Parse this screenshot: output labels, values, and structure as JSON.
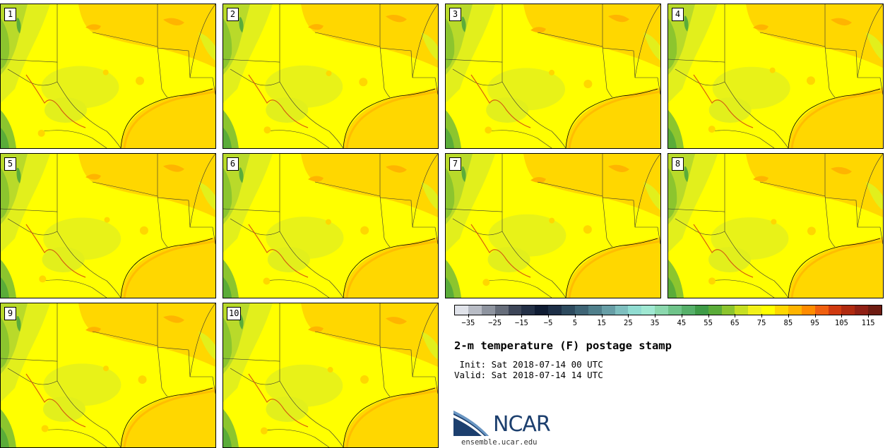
{
  "members": [
    "1",
    "2",
    "3",
    "4",
    "5",
    "6",
    "7",
    "8",
    "9",
    "10"
  ],
  "title": "2-m temperature (F) postage stamp",
  "init": " Init: Sat 2018-07-14 00 UTC",
  "valid": "Valid: Sat 2018-07-14 14 UTC",
  "colorbar": {
    "colors": [
      "#e0e3ea",
      "#b8bcc5",
      "#8e949f",
      "#666d7a",
      "#3d4658",
      "#233046",
      "#0f1c33",
      "#1d2f47",
      "#2d4a5e",
      "#3e6475",
      "#4f7f8b",
      "#679ea6",
      "#7ebfbf",
      "#90dcd1",
      "#9fe8d2",
      "#8bd8ae",
      "#6fc48a",
      "#56b06a",
      "#3e9b47",
      "#5aac39",
      "#8cc52e",
      "#c6df22",
      "#f2f11a",
      "#ffff00",
      "#ffd700",
      "#ffb400",
      "#ff8c00",
      "#f06010",
      "#d03a10",
      "#b02a10",
      "#902015",
      "#6e1c12"
    ],
    "tick_labels": [
      "−35",
      "−25",
      "−15",
      "−5",
      "5",
      "15",
      "25",
      "35",
      "45",
      "55",
      "65",
      "75",
      "85",
      "95",
      "105",
      "115"
    ]
  },
  "logo": {
    "text": "NCAR",
    "site": "ensemble.ucar.edu",
    "colors": {
      "blue": "#1c3f6e",
      "light": "#6a97c4"
    }
  }
}
